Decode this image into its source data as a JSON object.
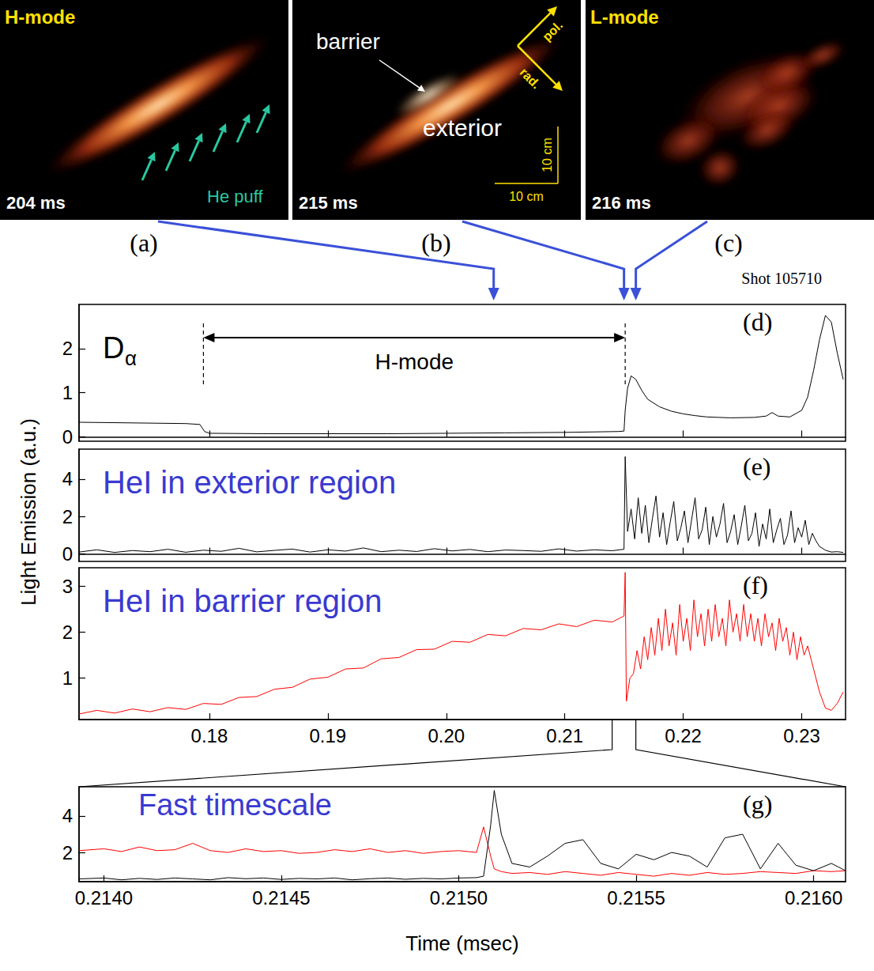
{
  "images": [
    {
      "letter": "(a)",
      "title": "H-mode",
      "time_label": "204 ms",
      "marker_time": 0.204,
      "puff_label": "He puff"
    },
    {
      "letter": "(b)",
      "time_label": "215 ms",
      "marker_time": 0.215,
      "barrier_label": "barrier",
      "exterior_label": "exterior",
      "pol_label": "pol.",
      "rad_label": "rad.",
      "scale_labels": [
        "10 cm",
        "10 cm"
      ]
    },
    {
      "letter": "(c)",
      "title": "L-mode",
      "time_label": "216 ms",
      "marker_time": 0.216
    }
  ],
  "shot": "Shot 105710",
  "y_label": "Light Emission (a.u.)",
  "chart_data": [
    {
      "type": "line",
      "letter": "(d)",
      "title": "Dα",
      "xlim": [
        0.169,
        0.2337
      ],
      "xticks": [
        0.18,
        0.19,
        {
          "value": 0.2,
          "label": "0.20"
        },
        0.21,
        0.22,
        0.23
      ],
      "ylim": [
        -0.1,
        3
      ],
      "yticks": [
        0,
        1,
        2
      ],
      "tick_labels": "y",
      "grid": false,
      "annotations": [
        {
          "text": "H-mode",
          "x_range": [
            0.1795,
            0.2151
          ]
        }
      ],
      "x": [
        0.169,
        0.172,
        0.175,
        0.178,
        0.1792,
        0.1796,
        0.18,
        0.185,
        0.19,
        0.195,
        0.2,
        0.205,
        0.21,
        0.2145,
        0.215,
        0.2151,
        0.2153,
        0.2156,
        0.216,
        0.2165,
        0.217,
        0.218,
        0.219,
        0.22,
        0.221,
        0.222,
        0.224,
        0.226,
        0.227,
        0.2275,
        0.228,
        0.229,
        0.23,
        0.2305,
        0.231,
        0.2315,
        0.232,
        0.2325,
        0.233,
        0.2335
      ],
      "series": [
        {
          "color": "#000000",
          "values": [
            0.33,
            0.32,
            0.31,
            0.3,
            0.28,
            0.12,
            0.08,
            0.07,
            0.07,
            0.07,
            0.08,
            0.09,
            0.1,
            0.12,
            0.13,
            0.6,
            1.1,
            1.38,
            1.3,
            1.05,
            0.85,
            0.68,
            0.58,
            0.52,
            0.48,
            0.45,
            0.43,
            0.44,
            0.47,
            0.55,
            0.47,
            0.45,
            0.6,
            0.9,
            1.5,
            2.2,
            2.75,
            2.6,
            1.9,
            1.3
          ]
        }
      ]
    },
    {
      "type": "line",
      "letter": "(e)",
      "title": "HeI in exterior region",
      "xlim": [
        0.169,
        0.2337
      ],
      "xticks": [
        0.18,
        0.19,
        {
          "value": 0.2,
          "label": "0.20"
        },
        0.21,
        0.22,
        0.23
      ],
      "ylim": [
        -0.4,
        5.6
      ],
      "yticks": [
        0,
        2,
        4
      ],
      "tick_labels": "y",
      "grid": false,
      "x": [
        0.169,
        0.1705,
        0.172,
        0.1735,
        0.175,
        0.1765,
        0.178,
        0.1795,
        0.181,
        0.1825,
        0.184,
        0.1855,
        0.187,
        0.1885,
        0.19,
        0.1915,
        0.193,
        0.1945,
        0.196,
        0.1975,
        0.199,
        0.2005,
        0.202,
        0.2035,
        0.205,
        0.2065,
        0.208,
        0.2095,
        0.211,
        0.2125,
        0.214,
        0.215,
        0.2151,
        0.2153,
        0.2156,
        0.2159,
        0.2162,
        0.2165,
        0.2168,
        0.2171,
        0.2174,
        0.2177,
        0.218,
        0.2183,
        0.2186,
        0.2189,
        0.2192,
        0.2195,
        0.2198,
        0.2201,
        0.2204,
        0.2207,
        0.221,
        0.2213,
        0.2216,
        0.2219,
        0.2222,
        0.2225,
        0.2228,
        0.2231,
        0.2234,
        0.2237,
        0.224,
        0.2243,
        0.2246,
        0.2249,
        0.2252,
        0.2255,
        0.2258,
        0.2261,
        0.2264,
        0.2267,
        0.227,
        0.2273,
        0.2276,
        0.2279,
        0.2282,
        0.2285,
        0.2288,
        0.2291,
        0.2294,
        0.2297,
        0.23,
        0.2303,
        0.2306,
        0.2309,
        0.2312,
        0.2315,
        0.232,
        0.2325,
        0.233,
        0.2335
      ],
      "series": [
        {
          "color": "#000000",
          "values": [
            0.1,
            0.22,
            0.08,
            0.18,
            0.12,
            0.25,
            0.09,
            0.2,
            0.14,
            0.3,
            0.11,
            0.19,
            0.26,
            0.1,
            0.22,
            0.15,
            0.32,
            0.12,
            0.2,
            0.13,
            0.28,
            0.16,
            0.24,
            0.12,
            0.21,
            0.18,
            0.14,
            0.27,
            0.15,
            0.22,
            0.17,
            0.25,
            5.2,
            1.2,
            2.4,
            0.8,
            3.0,
            1.1,
            2.6,
            0.6,
            1.9,
            3.1,
            0.9,
            2.2,
            0.5,
            1.7,
            2.8,
            0.7,
            1.4,
            2.3,
            0.6,
            1.8,
            3.0,
            0.8,
            1.3,
            2.5,
            0.5,
            2.0,
            0.9,
            1.6,
            2.7,
            0.6,
            1.2,
            2.1,
            0.5,
            1.5,
            2.6,
            0.7,
            1.1,
            2.2,
            0.4,
            1.6,
            0.8,
            2.4,
            0.6,
            1.3,
            1.9,
            0.5,
            1.0,
            2.3,
            0.6,
            1.4,
            0.9,
            1.8,
            0.5,
            1.1,
            0.7,
            0.4,
            0.2,
            0.1,
            0.12,
            0.08
          ]
        }
      ]
    },
    {
      "type": "line",
      "letter": "(f)",
      "title": "HeI in barrier region",
      "xlim": [
        0.169,
        0.2337
      ],
      "xticks": [
        0.18,
        0.19,
        {
          "value": 0.2,
          "label": "0.20"
        },
        0.21,
        0.22,
        0.23
      ],
      "ylim": [
        0.1,
        3.4
      ],
      "yticks": [
        1,
        2,
        3
      ],
      "grid": false,
      "x": [
        0.169,
        0.1705,
        0.172,
        0.1735,
        0.175,
        0.1765,
        0.178,
        0.1795,
        0.181,
        0.1825,
        0.184,
        0.1855,
        0.187,
        0.1885,
        0.19,
        0.1915,
        0.193,
        0.1945,
        0.196,
        0.1975,
        0.199,
        0.2005,
        0.202,
        0.2035,
        0.205,
        0.2065,
        0.208,
        0.2095,
        0.211,
        0.2125,
        0.214,
        0.215,
        0.2151,
        0.2152,
        0.2155,
        0.2158,
        0.2161,
        0.2164,
        0.2167,
        0.217,
        0.2173,
        0.2176,
        0.2179,
        0.2182,
        0.2185,
        0.2188,
        0.2191,
        0.2194,
        0.2197,
        0.22,
        0.2203,
        0.2206,
        0.2209,
        0.2212,
        0.2215,
        0.2218,
        0.2221,
        0.2224,
        0.2227,
        0.223,
        0.2233,
        0.2236,
        0.2239,
        0.2242,
        0.2245,
        0.2248,
        0.2251,
        0.2254,
        0.2257,
        0.226,
        0.2263,
        0.2266,
        0.2269,
        0.2272,
        0.2275,
        0.2278,
        0.2281,
        0.2284,
        0.2287,
        0.229,
        0.2293,
        0.2296,
        0.2299,
        0.2302,
        0.2305,
        0.231,
        0.2315,
        0.232,
        0.2325,
        0.233,
        0.2335
      ],
      "series": [
        {
          "color": "#ff0000",
          "values": [
            0.22,
            0.3,
            0.24,
            0.33,
            0.27,
            0.36,
            0.32,
            0.45,
            0.43,
            0.58,
            0.6,
            0.76,
            0.8,
            0.98,
            1.02,
            1.2,
            1.22,
            1.42,
            1.45,
            1.62,
            1.63,
            1.8,
            1.78,
            1.95,
            1.92,
            2.08,
            2.05,
            2.18,
            2.12,
            2.26,
            2.22,
            2.35,
            3.3,
            0.5,
            1.0,
            1.1,
            1.6,
            1.2,
            1.9,
            1.4,
            2.1,
            1.5,
            2.3,
            1.6,
            2.5,
            1.7,
            2.2,
            1.5,
            2.6,
            1.8,
            2.3,
            1.6,
            2.7,
            1.9,
            2.4,
            1.7,
            2.5,
            1.8,
            2.6,
            1.9,
            2.3,
            1.7,
            2.7,
            2.0,
            2.4,
            1.8,
            2.6,
            1.9,
            2.4,
            1.8,
            2.3,
            1.7,
            2.4,
            1.9,
            2.2,
            1.6,
            2.3,
            1.8,
            2.1,
            1.5,
            2.0,
            1.4,
            1.9,
            1.5,
            1.7,
            1.2,
            0.7,
            0.35,
            0.3,
            0.45,
            0.7
          ]
        }
      ]
    },
    {
      "type": "line",
      "letter": "(g)",
      "title": "Fast timescale",
      "x_label": "Time (msec)",
      "xlim": [
        0.21393,
        0.21609
      ],
      "xticks": [
        {
          "value": 0.214,
          "label": "0.2140"
        },
        0.2145,
        {
          "value": 0.215,
          "label": "0.2150"
        },
        0.2155,
        {
          "value": 0.216,
          "label": "0.2160"
        }
      ],
      "ylim": [
        0.4,
        5.6
      ],
      "yticks": [
        2,
        4
      ],
      "grid": false,
      "x": [
        0.21393,
        0.214,
        0.21405,
        0.2141,
        0.21415,
        0.2142,
        0.21425,
        0.2143,
        0.21435,
        0.2144,
        0.21445,
        0.2145,
        0.21455,
        0.2146,
        0.21465,
        0.2147,
        0.21475,
        0.2148,
        0.21485,
        0.2149,
        0.21495,
        0.215,
        0.21505,
        0.21507,
        0.21509,
        0.2151,
        0.21512,
        0.21515,
        0.2152,
        0.21525,
        0.2153,
        0.21535,
        0.2154,
        0.21545,
        0.2155,
        0.21555,
        0.2156,
        0.21565,
        0.2157,
        0.21575,
        0.2158,
        0.21585,
        0.2159,
        0.21595,
        0.216,
        0.21605,
        0.21609
      ],
      "series": [
        {
          "color": "#ff0000",
          "values": [
            2.1,
            2.2,
            2.05,
            2.3,
            2.1,
            2.15,
            2.5,
            2.1,
            2.0,
            2.2,
            2.05,
            2.1,
            1.95,
            2.0,
            2.15,
            2.05,
            2.2,
            2.0,
            2.1,
            1.95,
            2.05,
            2.1,
            2.0,
            3.4,
            1.8,
            1.1,
            0.95,
            0.85,
            0.9,
            0.8,
            0.95,
            0.85,
            0.75,
            0.9,
            0.8,
            0.7,
            0.85,
            0.75,
            0.9,
            0.8,
            0.85,
            0.95,
            0.9,
            0.85,
            1.0,
            0.95,
            1.0
          ]
        },
        {
          "color": "#000000",
          "values": [
            0.55,
            0.6,
            0.5,
            0.58,
            0.52,
            0.6,
            0.55,
            0.5,
            0.62,
            0.56,
            0.6,
            0.52,
            0.58,
            0.55,
            0.6,
            0.5,
            0.56,
            0.6,
            0.53,
            0.58,
            0.55,
            0.6,
            0.62,
            0.7,
            3.5,
            5.4,
            3.0,
            1.4,
            1.2,
            1.8,
            2.5,
            2.7,
            1.4,
            1.1,
            1.9,
            1.6,
            2.0,
            1.8,
            1.2,
            2.8,
            3.0,
            1.1,
            2.5,
            1.3,
            1.0,
            1.4,
            1.0
          ]
        }
      ]
    }
  ]
}
